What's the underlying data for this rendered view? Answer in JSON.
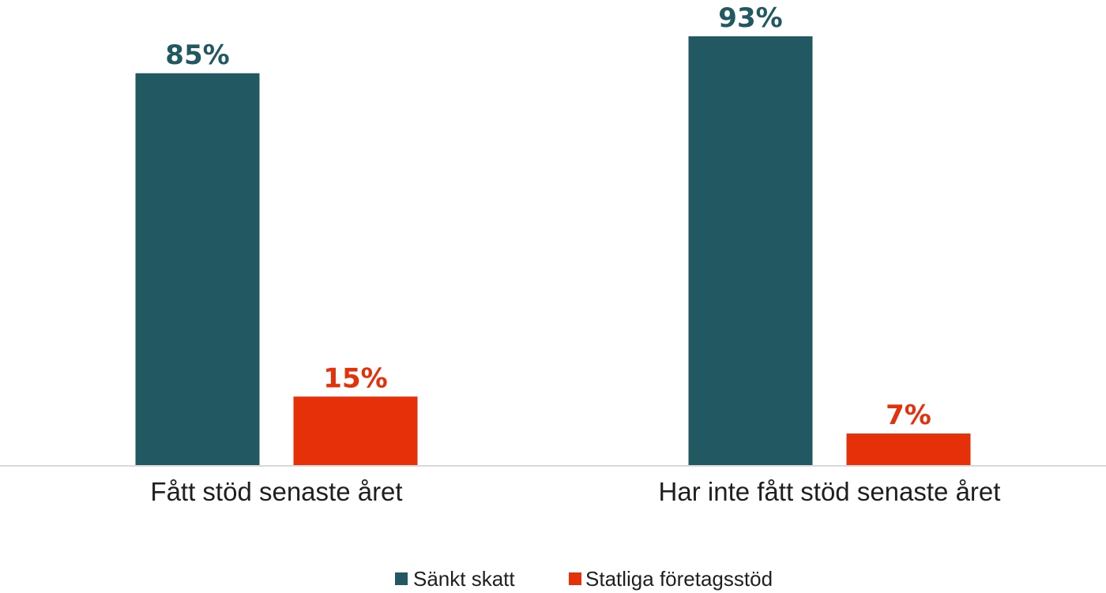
{
  "chart_data": {
    "type": "bar",
    "categories": [
      "Fått stöd senaste året",
      "Har inte fått stöd senaste året"
    ],
    "series": [
      {
        "name": "Sänkt skatt",
        "values": [
          85,
          93
        ],
        "labels": [
          "85%",
          "93%"
        ],
        "color": "#215862"
      },
      {
        "name": "Statliga företagsstöd",
        "values": [
          15,
          7
        ],
        "labels": [
          "15%",
          "7%"
        ],
        "color": "#e5300a"
      }
    ],
    "unit": "%",
    "ylim": [
      0,
      100
    ],
    "grid": false,
    "legend_position": "bottom-center"
  }
}
